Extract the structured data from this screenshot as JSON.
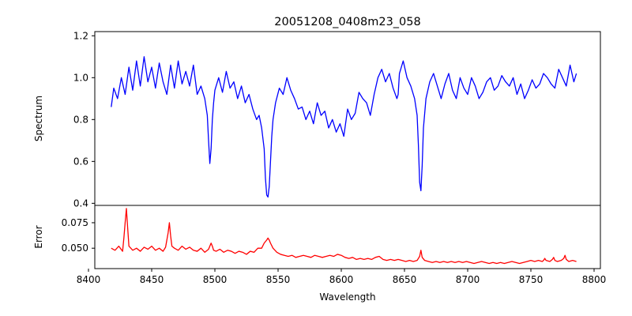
{
  "chart_data": [
    {
      "type": "line",
      "title": "20051208_0408m23_058",
      "xlabel": "",
      "ylabel": "Spectrum",
      "xlim": [
        8405,
        8805
      ],
      "ylim": [
        0.39,
        1.22
      ],
      "yticks": [
        0.4,
        0.6,
        0.8,
        1.0,
        1.2
      ],
      "ytick_labels": [
        "0.4",
        "0.6",
        "0.8",
        "1.0",
        "1.2"
      ],
      "grid": false,
      "legend": false,
      "color": "#0000ff",
      "series": [
        {
          "x": [
            8418,
            8420,
            8423,
            8426,
            8429,
            8432,
            8435,
            8438,
            8441,
            8444,
            8447,
            8450,
            8453,
            8456,
            8459,
            8462,
            8465,
            8468,
            8471,
            8474,
            8477,
            8480,
            8483,
            8486,
            8489,
            8492,
            8494,
            8495,
            8496,
            8497,
            8498,
            8499,
            8500,
            8503,
            8506,
            8509,
            8512,
            8515,
            8518,
            8521,
            8524,
            8527,
            8530,
            8533,
            8535,
            8537,
            8539,
            8540,
            8541,
            8542,
            8543,
            8544,
            8545,
            8546,
            8548,
            8551,
            8554,
            8557,
            8560,
            8563,
            8566,
            8569,
            8572,
            8575,
            8578,
            8581,
            8584,
            8587,
            8590,
            8593,
            8596,
            8599,
            8602,
            8605,
            8608,
            8611,
            8614,
            8617,
            8620,
            8623,
            8626,
            8629,
            8632,
            8635,
            8638,
            8641,
            8644,
            8645,
            8646,
            8649,
            8652,
            8655,
            8658,
            8660,
            8661,
            8662,
            8663,
            8664,
            8665,
            8667,
            8670,
            8673,
            8676,
            8679,
            8682,
            8685,
            8688,
            8691,
            8694,
            8697,
            8700,
            8703,
            8706,
            8709,
            8712,
            8715,
            8718,
            8721,
            8724,
            8727,
            8730,
            8733,
            8736,
            8739,
            8742,
            8745,
            8748,
            8751,
            8754,
            8757,
            8760,
            8763,
            8766,
            8769,
            8772,
            8775,
            8778,
            8781,
            8784,
            8786
          ],
          "y": [
            0.86,
            0.95,
            0.9,
            1.0,
            0.92,
            1.05,
            0.94,
            1.08,
            0.96,
            1.1,
            0.98,
            1.05,
            0.95,
            1.07,
            0.98,
            0.92,
            1.06,
            0.95,
            1.08,
            0.97,
            1.03,
            0.96,
            1.06,
            0.92,
            0.96,
            0.9,
            0.82,
            0.7,
            0.59,
            0.66,
            0.8,
            0.88,
            0.94,
            1.0,
            0.93,
            1.03,
            0.95,
            0.98,
            0.9,
            0.96,
            0.88,
            0.92,
            0.85,
            0.8,
            0.82,
            0.76,
            0.66,
            0.52,
            0.44,
            0.43,
            0.48,
            0.6,
            0.72,
            0.8,
            0.88,
            0.95,
            0.92,
            1.0,
            0.94,
            0.9,
            0.85,
            0.86,
            0.8,
            0.84,
            0.78,
            0.88,
            0.82,
            0.84,
            0.76,
            0.8,
            0.74,
            0.78,
            0.72,
            0.85,
            0.8,
            0.83,
            0.93,
            0.9,
            0.88,
            0.82,
            0.92,
            1.0,
            1.04,
            0.98,
            1.02,
            0.95,
            0.9,
            0.92,
            1.02,
            1.08,
            1.0,
            0.96,
            0.9,
            0.82,
            0.68,
            0.5,
            0.46,
            0.58,
            0.76,
            0.9,
            0.98,
            1.02,
            0.96,
            0.9,
            0.97,
            1.02,
            0.94,
            0.9,
            1.0,
            0.95,
            0.92,
            1.0,
            0.96,
            0.9,
            0.93,
            0.98,
            1.0,
            0.94,
            0.96,
            1.01,
            0.98,
            0.96,
            1.0,
            0.92,
            0.97,
            0.9,
            0.94,
            0.99,
            0.95,
            0.97,
            1.02,
            1.0,
            0.97,
            0.95,
            1.04,
            1.0,
            0.96,
            1.06,
            0.98,
            1.02
          ]
        }
      ]
    },
    {
      "type": "line",
      "title": "",
      "xlabel": "Wavelength",
      "ylabel": "Error",
      "xlim": [
        8405,
        8805
      ],
      "ylim": [
        0.03,
        0.092
      ],
      "xticks": [
        8400,
        8450,
        8500,
        8550,
        8600,
        8650,
        8700,
        8750,
        8800
      ],
      "xtick_labels": [
        "8400",
        "8450",
        "8500",
        "8550",
        "8600",
        "8650",
        "8700",
        "8750",
        "8800"
      ],
      "yticks": [
        0.05,
        0.075
      ],
      "ytick_labels": [
        "0.050",
        "0.075"
      ],
      "grid": false,
      "legend": false,
      "color": "#ff0000",
      "series": [
        {
          "x": [
            8418,
            8421,
            8424,
            8427,
            8428,
            8429,
            8430,
            8431,
            8432,
            8435,
            8438,
            8441,
            8444,
            8447,
            8450,
            8453,
            8456,
            8459,
            8461,
            8462,
            8463,
            8464,
            8465,
            8466,
            8468,
            8471,
            8474,
            8477,
            8480,
            8483,
            8486,
            8489,
            8492,
            8495,
            8497,
            8498,
            8499,
            8501,
            8504,
            8507,
            8510,
            8513,
            8516,
            8519,
            8522,
            8525,
            8528,
            8531,
            8534,
            8537,
            8539,
            8541,
            8542,
            8543,
            8544,
            8546,
            8549,
            8552,
            8555,
            8558,
            8561,
            8564,
            8567,
            8570,
            8573,
            8576,
            8579,
            8582,
            8585,
            8588,
            8591,
            8594,
            8597,
            8600,
            8603,
            8606,
            8609,
            8612,
            8615,
            8618,
            8621,
            8624,
            8627,
            8630,
            8633,
            8636,
            8639,
            8642,
            8645,
            8648,
            8651,
            8654,
            8657,
            8660,
            8662,
            8663,
            8664,
            8666,
            8669,
            8672,
            8675,
            8678,
            8681,
            8684,
            8687,
            8690,
            8693,
            8696,
            8699,
            8702,
            8705,
            8708,
            8711,
            8714,
            8717,
            8720,
            8723,
            8726,
            8729,
            8732,
            8735,
            8738,
            8741,
            8744,
            8747,
            8750,
            8753,
            8756,
            8759,
            8760,
            8761,
            8762,
            8765,
            8767,
            8768,
            8769,
            8771,
            8774,
            8776,
            8777,
            8778,
            8780,
            8783,
            8786
          ],
          "y": [
            0.05,
            0.048,
            0.052,
            0.047,
            0.06,
            0.075,
            0.089,
            0.07,
            0.052,
            0.048,
            0.05,
            0.047,
            0.051,
            0.049,
            0.052,
            0.048,
            0.05,
            0.047,
            0.051,
            0.058,
            0.065,
            0.075,
            0.062,
            0.052,
            0.05,
            0.048,
            0.052,
            0.049,
            0.051,
            0.048,
            0.047,
            0.05,
            0.046,
            0.049,
            0.055,
            0.052,
            0.048,
            0.047,
            0.049,
            0.046,
            0.048,
            0.047,
            0.045,
            0.047,
            0.046,
            0.044,
            0.047,
            0.046,
            0.05,
            0.05,
            0.055,
            0.058,
            0.06,
            0.058,
            0.055,
            0.05,
            0.046,
            0.044,
            0.043,
            0.042,
            0.043,
            0.041,
            0.042,
            0.043,
            0.042,
            0.041,
            0.043,
            0.042,
            0.041,
            0.042,
            0.043,
            0.042,
            0.044,
            0.043,
            0.041,
            0.04,
            0.041,
            0.039,
            0.04,
            0.039,
            0.04,
            0.039,
            0.041,
            0.042,
            0.039,
            0.038,
            0.039,
            0.038,
            0.039,
            0.038,
            0.037,
            0.038,
            0.037,
            0.038,
            0.042,
            0.048,
            0.041,
            0.038,
            0.037,
            0.036,
            0.037,
            0.036,
            0.037,
            0.036,
            0.037,
            0.036,
            0.037,
            0.036,
            0.037,
            0.036,
            0.035,
            0.036,
            0.037,
            0.036,
            0.035,
            0.036,
            0.035,
            0.036,
            0.035,
            0.036,
            0.037,
            0.036,
            0.035,
            0.036,
            0.037,
            0.038,
            0.037,
            0.038,
            0.037,
            0.038,
            0.04,
            0.038,
            0.037,
            0.039,
            0.041,
            0.038,
            0.037,
            0.038,
            0.04,
            0.043,
            0.039,
            0.037,
            0.038,
            0.037
          ]
        }
      ]
    }
  ]
}
